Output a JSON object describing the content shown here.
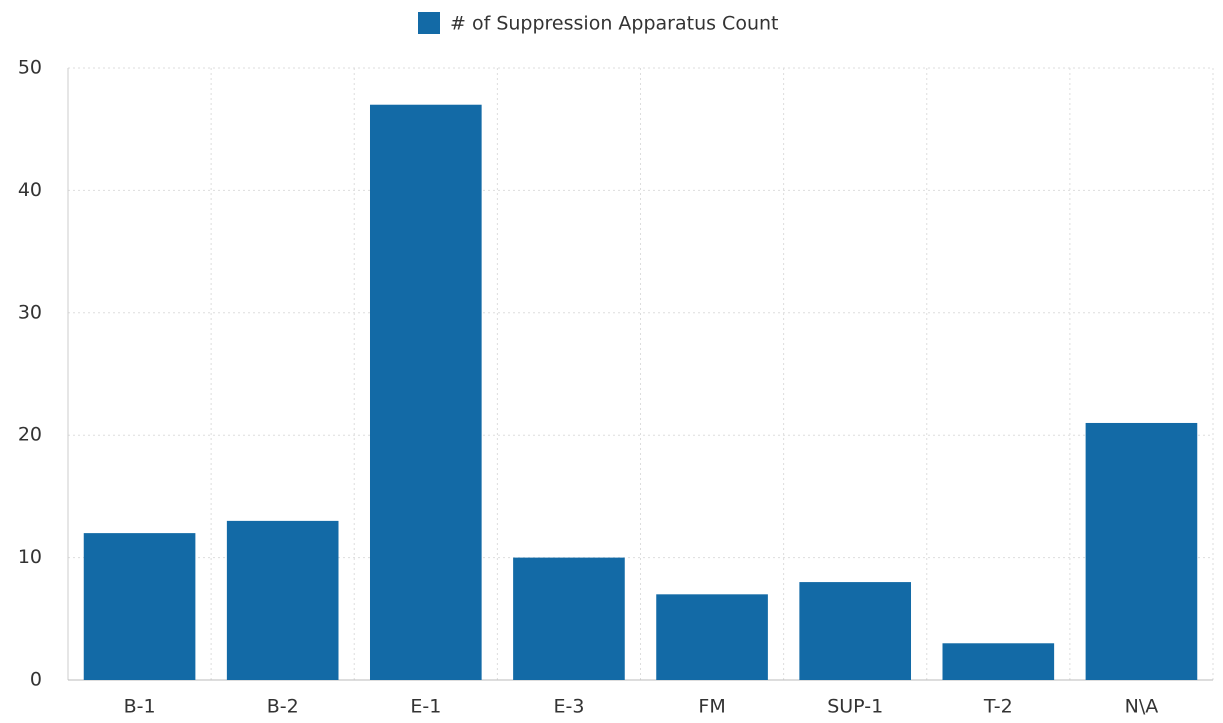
{
  "chart_data": {
    "type": "bar",
    "categories": [
      "B-1",
      "B-2",
      "E-1",
      "E-3",
      "FM",
      "SUP-1",
      "T-2",
      "N\\A"
    ],
    "series": [
      {
        "name": "# of Suppression Apparatus Count",
        "color": "#136aa6",
        "values": [
          12,
          13,
          47,
          10,
          7,
          8,
          3,
          21
        ]
      }
    ],
    "ylim": [
      0,
      50
    ],
    "yticks": [
      0,
      10,
      20,
      30,
      40,
      50
    ],
    "grid": true,
    "legend": "top"
  }
}
